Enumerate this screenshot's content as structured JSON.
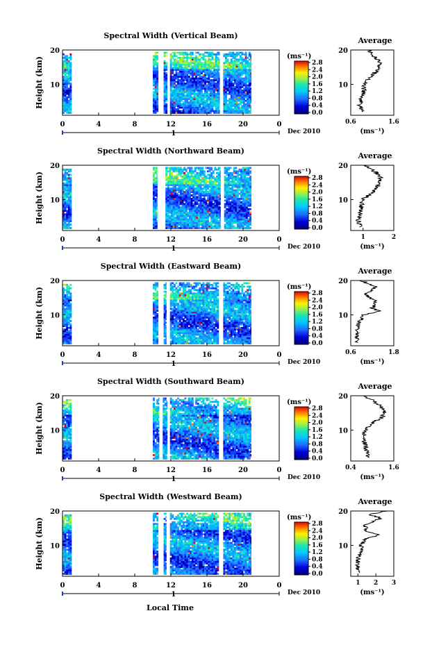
{
  "figure": {
    "xlabel": "Local Time",
    "date_label": "Dec 2010",
    "day_label": "1",
    "colorbar_unit": "(ms⁻¹)",
    "colorbar_ticks": [
      "0.0",
      "0.4",
      "0.8",
      "1.2",
      "1.6",
      "2.0",
      "2.4",
      "2.8"
    ],
    "xticks": [
      "0",
      "4",
      "8",
      "12",
      "16",
      "20",
      "0"
    ],
    "ylabel": "Height (km)",
    "yticks": [
      "10",
      "20"
    ],
    "avg_title": "Average",
    "avg_unit": "(ms⁻¹)"
  },
  "chart_data": [
    {
      "type": "heatmap",
      "title": "Spectral Width (Vertical Beam)",
      "xlabel": "Local Time",
      "ylabel": "Height (km)",
      "xlim": [
        0,
        24
      ],
      "ylim": [
        1,
        20
      ],
      "zlim": [
        0.0,
        2.8
      ],
      "data_spans": [
        [
          0,
          1
        ],
        [
          10,
          10.6
        ],
        [
          11.2,
          11.6
        ],
        [
          11.9,
          17.4
        ],
        [
          17.8,
          20.9
        ]
      ],
      "average": {
        "xlim": [
          0.6,
          1.6
        ],
        "xticks": [
          "0.6",
          "1.6"
        ],
        "profile": [
          [
            2,
            0.9
          ],
          [
            4,
            0.8
          ],
          [
            6,
            0.85
          ],
          [
            8,
            0.9
          ],
          [
            10,
            0.9
          ],
          [
            12,
            1.05
          ],
          [
            14,
            1.2
          ],
          [
            16,
            1.3
          ],
          [
            18,
            1.15
          ],
          [
            20,
            1.0
          ]
        ]
      }
    },
    {
      "type": "heatmap",
      "title": "Spectral Width (Northward Beam)",
      "xlabel": "Local Time",
      "ylabel": "Height (km)",
      "xlim": [
        0,
        24
      ],
      "ylim": [
        1,
        20
      ],
      "zlim": [
        0.0,
        2.8
      ],
      "data_spans": [
        [
          0,
          1
        ],
        [
          10,
          10.5
        ],
        [
          11.4,
          17.5
        ],
        [
          17.9,
          20.9
        ]
      ],
      "average": {
        "xlim": [
          0.6,
          2.0
        ],
        "xticks": [
          "1",
          "2"
        ],
        "profile": [
          [
            2,
            0.9
          ],
          [
            4,
            0.85
          ],
          [
            6,
            0.9
          ],
          [
            8,
            0.95
          ],
          [
            10,
            1.0
          ],
          [
            12,
            1.3
          ],
          [
            14,
            1.5
          ],
          [
            16,
            1.6
          ],
          [
            18,
            1.4
          ],
          [
            20,
            1.1
          ]
        ]
      }
    },
    {
      "type": "heatmap",
      "title": "Spectral Width (Eastward Beam)",
      "xlabel": "Local Time",
      "ylabel": "Height (km)",
      "xlim": [
        0,
        24
      ],
      "ylim": [
        1,
        20
      ],
      "zlim": [
        0.0,
        2.8
      ],
      "data_spans": [
        [
          0,
          1
        ],
        [
          10,
          10.6
        ],
        [
          11.2,
          11.5
        ],
        [
          11.9,
          17.3
        ],
        [
          17.8,
          20.9
        ]
      ],
      "average": {
        "xlim": [
          0.6,
          1.8
        ],
        "xticks": [
          "0.6",
          "1.8"
        ],
        "profile": [
          [
            2,
            0.8
          ],
          [
            4,
            0.75
          ],
          [
            6,
            0.8
          ],
          [
            8,
            0.85
          ],
          [
            10,
            0.95
          ],
          [
            11,
            1.4
          ],
          [
            12,
            1.2
          ],
          [
            14,
            1.3
          ],
          [
            16,
            1.0
          ],
          [
            18,
            1.3
          ],
          [
            20,
            0.9
          ]
        ]
      }
    },
    {
      "type": "heatmap",
      "title": "Spectral Width (Southward Beam)",
      "xlabel": "Local Time",
      "ylabel": "Height (km)",
      "xlim": [
        0,
        24
      ],
      "ylim": [
        1,
        20
      ],
      "zlim": [
        0.0,
        2.8
      ],
      "data_spans": [
        [
          0,
          1
        ],
        [
          10,
          10.7
        ],
        [
          11.1,
          11.6
        ],
        [
          11.9,
          17.3
        ],
        [
          17.8,
          20.9
        ]
      ],
      "average": {
        "xlim": [
          0.4,
          1.6
        ],
        "xticks": [
          "0.4",
          "1.6"
        ],
        "profile": [
          [
            2,
            0.9
          ],
          [
            4,
            0.85
          ],
          [
            6,
            0.8
          ],
          [
            8,
            0.75
          ],
          [
            10,
            0.8
          ],
          [
            12,
            1.0
          ],
          [
            14,
            1.3
          ],
          [
            16,
            1.35
          ],
          [
            18,
            1.1
          ],
          [
            20,
            0.8
          ]
        ]
      }
    },
    {
      "type": "heatmap",
      "title": "Spectral Width (Westward Beam)",
      "xlabel": "Local Time",
      "ylabel": "Height (km)",
      "xlim": [
        0,
        24
      ],
      "ylim": [
        1,
        20
      ],
      "zlim": [
        0.0,
        2.8
      ],
      "data_spans": [
        [
          0,
          1
        ],
        [
          10,
          10.6
        ],
        [
          11.2,
          11.5
        ],
        [
          11.9,
          17.3
        ],
        [
          17.8,
          20.9
        ]
      ],
      "average": {
        "xlim": [
          0.6,
          3.0
        ],
        "xticks": [
          "1",
          "2",
          "3"
        ],
        "profile": [
          [
            2,
            1.0
          ],
          [
            4,
            0.95
          ],
          [
            6,
            1.0
          ],
          [
            8,
            1.1
          ],
          [
            10,
            1.2
          ],
          [
            12,
            1.5
          ],
          [
            13,
            2.2
          ],
          [
            14,
            1.5
          ],
          [
            16,
            1.4
          ],
          [
            18,
            2.3
          ],
          [
            19,
            1.6
          ],
          [
            20,
            2.6
          ]
        ]
      }
    }
  ]
}
